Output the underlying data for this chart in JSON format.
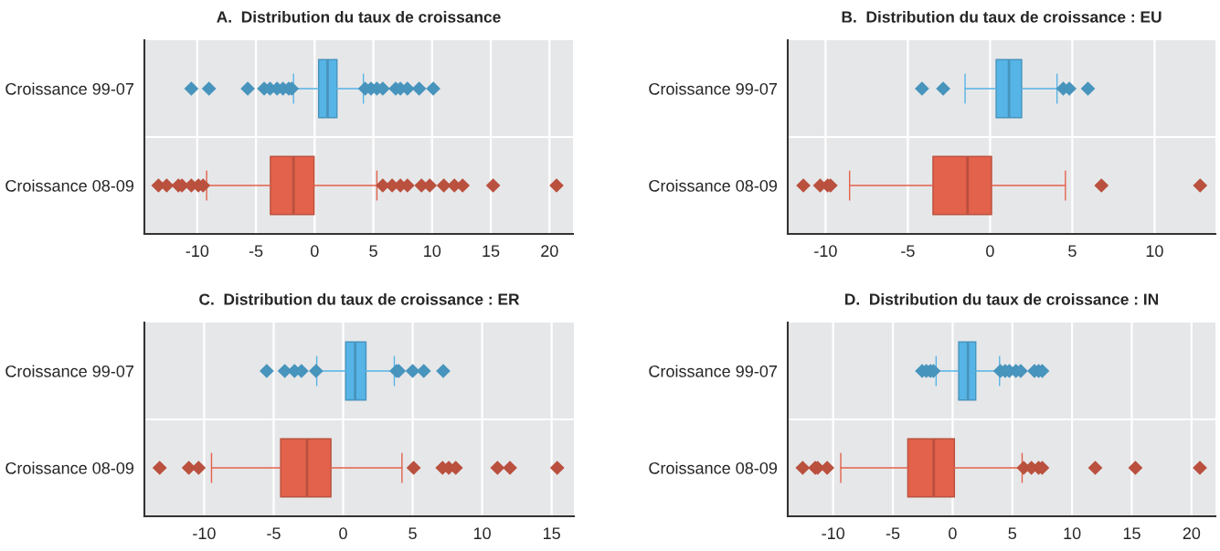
{
  "chart_data": [
    {
      "type": "box",
      "title": "A.  Distribution du taux de croissance",
      "orientation": "horizontal",
      "categories": [
        "Croissance 99-07",
        "Croissance 08-09"
      ],
      "colors": [
        "#56b4e6",
        "#e3624b"
      ],
      "xlim": [
        -14.5,
        22
      ],
      "xticks": [
        -10,
        -5,
        0,
        5,
        10,
        15,
        20
      ],
      "grid": true,
      "boxes": [
        {
          "low": -1.8,
          "q1": 0.34,
          "median": 1.1,
          "q3": 1.9,
          "high": 4.15,
          "outliers": [
            -10.5,
            -9.0,
            -5.7,
            -4.3,
            -3.8,
            -3.2,
            -2.7,
            -2.2,
            -1.95,
            4.3,
            4.8,
            5.3,
            5.8,
            6.9,
            7.3,
            7.9,
            8.9,
            10.1
          ]
        },
        {
          "low": -9.2,
          "q1": -3.77,
          "median": -1.8,
          "q3": -0.05,
          "high": 5.3,
          "outliers": [
            -13.3,
            -12.6,
            -11.6,
            -11.3,
            -10.5,
            -9.9,
            -9.5,
            5.8,
            6.6,
            7.3,
            7.9,
            9.1,
            9.8,
            11.0,
            11.9,
            12.6,
            15.2,
            20.6
          ]
        }
      ]
    },
    {
      "type": "box",
      "title": "B.  Distribution du taux de croissance : EU",
      "orientation": "horizontal",
      "categories": [
        "Croissance 99-07",
        "Croissance 08-09"
      ],
      "colors": [
        "#56b4e6",
        "#e3624b"
      ],
      "xlim": [
        -12.3,
        13.7
      ],
      "xticks": [
        -10,
        -5,
        0,
        5,
        10
      ],
      "grid": true,
      "boxes": [
        {
          "low": -1.52,
          "q1": 0.37,
          "median": 1.15,
          "q3": 1.92,
          "high": 4.07,
          "outliers": [
            -4.14,
            -2.85,
            4.45,
            4.82,
            5.95
          ]
        },
        {
          "low": -8.54,
          "q1": -3.47,
          "median": -1.37,
          "q3": 0.09,
          "high": 4.58,
          "outliers": [
            -11.35,
            -10.33,
            -9.87,
            -9.7,
            6.77,
            12.77
          ]
        }
      ]
    },
    {
      "type": "box",
      "title": "C.  Distribution du taux de croissance : ER",
      "orientation": "horizontal",
      "categories": [
        "Croissance 99-07",
        "Croissance 08-09"
      ],
      "colors": [
        "#56b4e6",
        "#e3624b"
      ],
      "xlim": [
        -14.3,
        16.6
      ],
      "xticks": [
        -10,
        -5,
        0,
        5,
        10,
        15
      ],
      "grid": true,
      "boxes": [
        {
          "low": -1.9,
          "q1": 0.18,
          "median": 0.86,
          "q3": 1.64,
          "high": 3.68,
          "outliers": [
            -5.5,
            -4.2,
            -3.5,
            -3.0,
            -1.95,
            3.84,
            4.0,
            5.0,
            5.8,
            7.2
          ]
        },
        {
          "low": -9.47,
          "q1": -4.5,
          "median": -2.6,
          "q3": -0.88,
          "high": 4.23,
          "outliers": [
            -13.2,
            -11.1,
            -10.4,
            5.07,
            7.15,
            7.6,
            8.1,
            11.1,
            12.0,
            15.4
          ]
        }
      ]
    },
    {
      "type": "box",
      "title": "D.  Distribution du taux de croissance : IN",
      "orientation": "horizontal",
      "categories": [
        "Croissance 99-07",
        "Croissance 08-09"
      ],
      "colors": [
        "#56b4e6",
        "#e3624b"
      ],
      "xlim": [
        -13.8,
        22.0
      ],
      "xticks": [
        -10,
        -5,
        0,
        5,
        10,
        15,
        20
      ],
      "grid": true,
      "boxes": [
        {
          "low": -1.38,
          "q1": 0.51,
          "median": 1.28,
          "q3": 1.94,
          "high": 3.93,
          "outliers": [
            -2.55,
            -2.2,
            -1.85,
            -1.6,
            4.0,
            4.4,
            4.75,
            5.3,
            5.7,
            6.85,
            7.2,
            7.5
          ]
        },
        {
          "low": -9.36,
          "q1": -3.75,
          "median": -1.58,
          "q3": 0.15,
          "high": 5.82,
          "outliers": [
            -12.55,
            -11.5,
            -11.3,
            -10.5,
            5.95,
            6.6,
            7.2,
            7.5,
            11.94,
            15.3,
            20.7
          ]
        }
      ]
    }
  ]
}
